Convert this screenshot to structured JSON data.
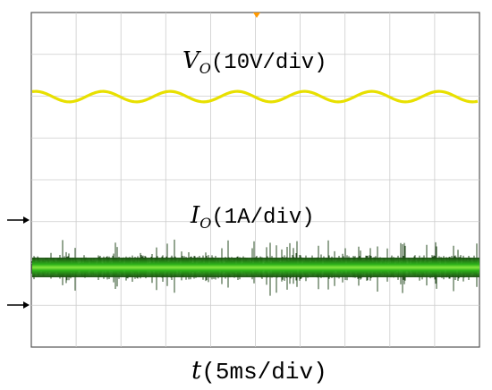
{
  "chart_data": {
    "type": "line",
    "grid": true,
    "x_divisions": 10,
    "y_divisions": 8,
    "xlabel": {
      "var": "t",
      "unit": "(5ms/div)"
    },
    "series": [
      {
        "label": {
          "var": "V",
          "sub": "O",
          "unit": "(10V/div)"
        },
        "color": "#e8e000",
        "shape": "sine",
        "period_div": 1.5,
        "peak_to_peak_div": 0.25
      },
      {
        "label": {
          "var": "I",
          "sub": "O",
          "unit": "(1A/div)"
        },
        "color": "#3fd820",
        "shape": "noise-band"
      }
    ],
    "trigger_marker_color": "#ff9900",
    "ground_marker_color": "#000000"
  }
}
